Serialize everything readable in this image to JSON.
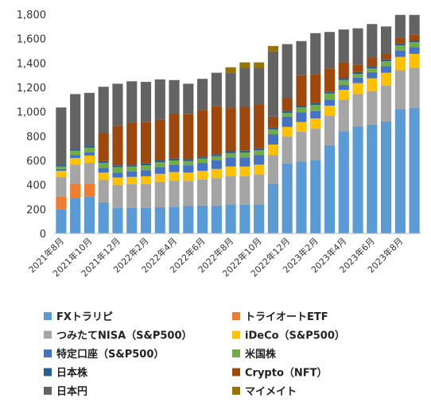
{
  "chart_data": {
    "type": "bar",
    "stacked": true,
    "title": "",
    "xlabel": "",
    "ylabel": "",
    "ylim": [
      0,
      1800
    ],
    "yticks": [
      0,
      200,
      400,
      600,
      800,
      1000,
      1200,
      1400,
      1600,
      1800
    ],
    "ytick_labels": [
      "0",
      "200",
      "400",
      "600",
      "800",
      "1,000",
      "1,200",
      "1,400",
      "1,600",
      "1,800"
    ],
    "grid": false,
    "legend_position": "bottom",
    "categories": [
      "2021年8月",
      "2021年9月",
      "2021年10月",
      "2021年11月",
      "2021年12月",
      "2022年1月",
      "2022年2月",
      "2022年3月",
      "2022年4月",
      "2022年5月",
      "2022年6月",
      "2022年7月",
      "2022年8月",
      "2022年9月",
      "2022年10月",
      "2022年11月",
      "2022年12月",
      "2023年1月",
      "2023年2月",
      "2023年3月",
      "2023年4月",
      "2023年5月",
      "2023年6月",
      "2023年7月",
      "2023年8月",
      "2023年9月"
    ],
    "xtick_labels": [
      "2021年8月",
      "",
      "2021年10月",
      "",
      "2021年12月",
      "",
      "2022年2月",
      "",
      "2022年4月",
      "",
      "2022年6月",
      "",
      "2022年8月",
      "",
      "2022年10月",
      "",
      "2022年12月",
      "",
      "2023年2月",
      "",
      "2023年4月",
      "",
      "2023年6月",
      "",
      "2023年8月",
      ""
    ],
    "series": [
      {
        "name": "FXトラリピ",
        "color": "#5B9BD5",
        "values": [
          200,
          290,
          305,
          255,
          210,
          210,
          210,
          215,
          220,
          225,
          230,
          230,
          240,
          235,
          240,
          410,
          575,
          590,
          605,
          725,
          840,
          880,
          895,
          920,
          1020,
          1030
        ]
      },
      {
        "name": "トライオートETF",
        "color": "#ED7D31",
        "values": [
          105,
          120,
          105,
          0,
          0,
          0,
          0,
          0,
          0,
          0,
          0,
          0,
          0,
          0,
          0,
          0,
          0,
          0,
          0,
          0,
          0,
          0,
          0,
          0,
          0,
          0
        ]
      },
      {
        "name": "つみたてNISA（S&P500）",
        "color": "#A5A5A5",
        "values": [
          160,
          155,
          170,
          185,
          190,
          195,
          195,
          210,
          215,
          205,
          215,
          225,
          230,
          235,
          245,
          235,
          220,
          245,
          255,
          240,
          260,
          265,
          275,
          295,
          320,
          330
        ]
      },
      {
        "name": "iDeCo（S&P500）",
        "color": "#FFC000",
        "values": [
          50,
          55,
          60,
          60,
          60,
          60,
          65,
          65,
          70,
          70,
          70,
          75,
          80,
          80,
          80,
          85,
          80,
          80,
          85,
          85,
          80,
          90,
          105,
          105,
          110,
          115
        ]
      },
      {
        "name": "特定口座（S&P500）",
        "color": "#4472C4",
        "values": [
          15,
          25,
          25,
          40,
          40,
          45,
          50,
          55,
          60,
          60,
          65,
          70,
          75,
          75,
          80,
          85,
          85,
          80,
          60,
          50,
          40,
          45,
          50,
          55,
          50,
          55
        ]
      },
      {
        "name": "米国株",
        "color": "#70AD47",
        "values": [
          20,
          35,
          40,
          40,
          45,
          40,
          40,
          40,
          35,
          35,
          35,
          35,
          35,
          40,
          40,
          40,
          30,
          40,
          50,
          50,
          40,
          30,
          30,
          40,
          45,
          40
        ]
      },
      {
        "name": "日本株",
        "color": "#255E91",
        "values": [
          15,
          15,
          15,
          15,
          15,
          15,
          15,
          15,
          15,
          15,
          15,
          15,
          15,
          15,
          15,
          15,
          15,
          15,
          15,
          15,
          15,
          15,
          15,
          15,
          15,
          15
        ]
      },
      {
        "name": "Crypto（NFT）",
        "color": "#9E480E",
        "values": [
          0,
          0,
          0,
          230,
          325,
          345,
          340,
          335,
          370,
          370,
          385,
          395,
          355,
          360,
          360,
          90,
          110,
          250,
          235,
          190,
          130,
          60,
          75,
          50,
          50,
          50
        ]
      },
      {
        "name": "日本円",
        "color": "#636363",
        "values": [
          470,
          450,
          435,
          380,
          345,
          340,
          330,
          330,
          275,
          250,
          255,
          275,
          290,
          320,
          300,
          535,
          440,
          280,
          340,
          300,
          270,
          300,
          275,
          220,
          185,
          160
        ]
      },
      {
        "name": "マイメイト",
        "color": "#997300",
        "values": [
          0,
          0,
          0,
          0,
          0,
          0,
          0,
          0,
          0,
          0,
          0,
          0,
          45,
          45,
          45,
          45,
          0,
          0,
          0,
          0,
          0,
          0,
          0,
          0,
          0,
          0
        ]
      }
    ]
  }
}
